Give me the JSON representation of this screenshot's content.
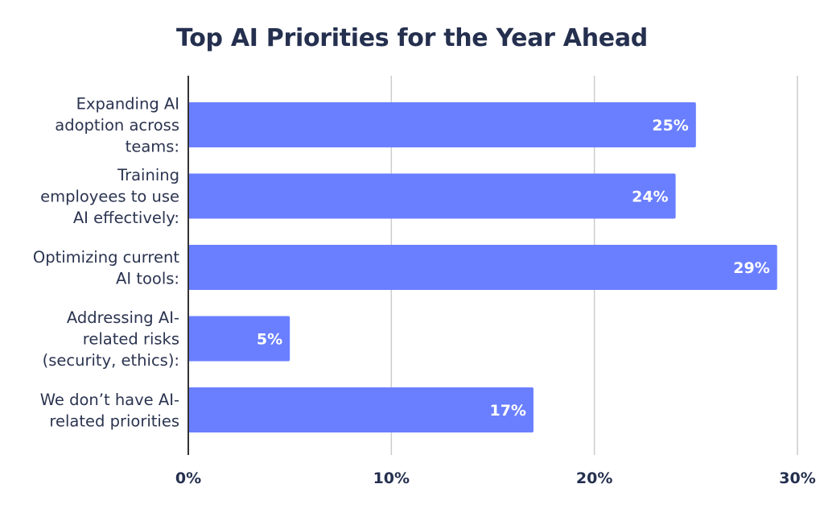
{
  "chart_data": {
    "type": "bar",
    "orientation": "horizontal",
    "title": "Top AI Priorities for the Year Ahead",
    "categories": [
      [
        "Expanding AI",
        "adoption across",
        "teams:"
      ],
      [
        "Training",
        "employees to use",
        "AI effectively:"
      ],
      [
        "Optimizing current",
        "AI tools:"
      ],
      [
        "Addressing AI-",
        "related risks",
        "(security, ethics):"
      ],
      [
        "We don’t have AI-",
        "related priorities"
      ]
    ],
    "values": [
      25,
      24,
      29,
      5,
      17
    ],
    "data_labels": [
      "25%",
      "24%",
      "29%",
      "5%",
      "17%"
    ],
    "xlim": [
      0,
      30
    ],
    "xticks": [
      0,
      10,
      20,
      30
    ],
    "xtick_labels": [
      "0%",
      "10%",
      "20%",
      "30%"
    ],
    "xlabel": "",
    "ylabel": "",
    "grid": true,
    "bar_color": "#6a7fff",
    "grid_color": "#cccccc",
    "axis_color": "#333333",
    "title_color": "#25304f",
    "text_color": "#2b3450"
  }
}
